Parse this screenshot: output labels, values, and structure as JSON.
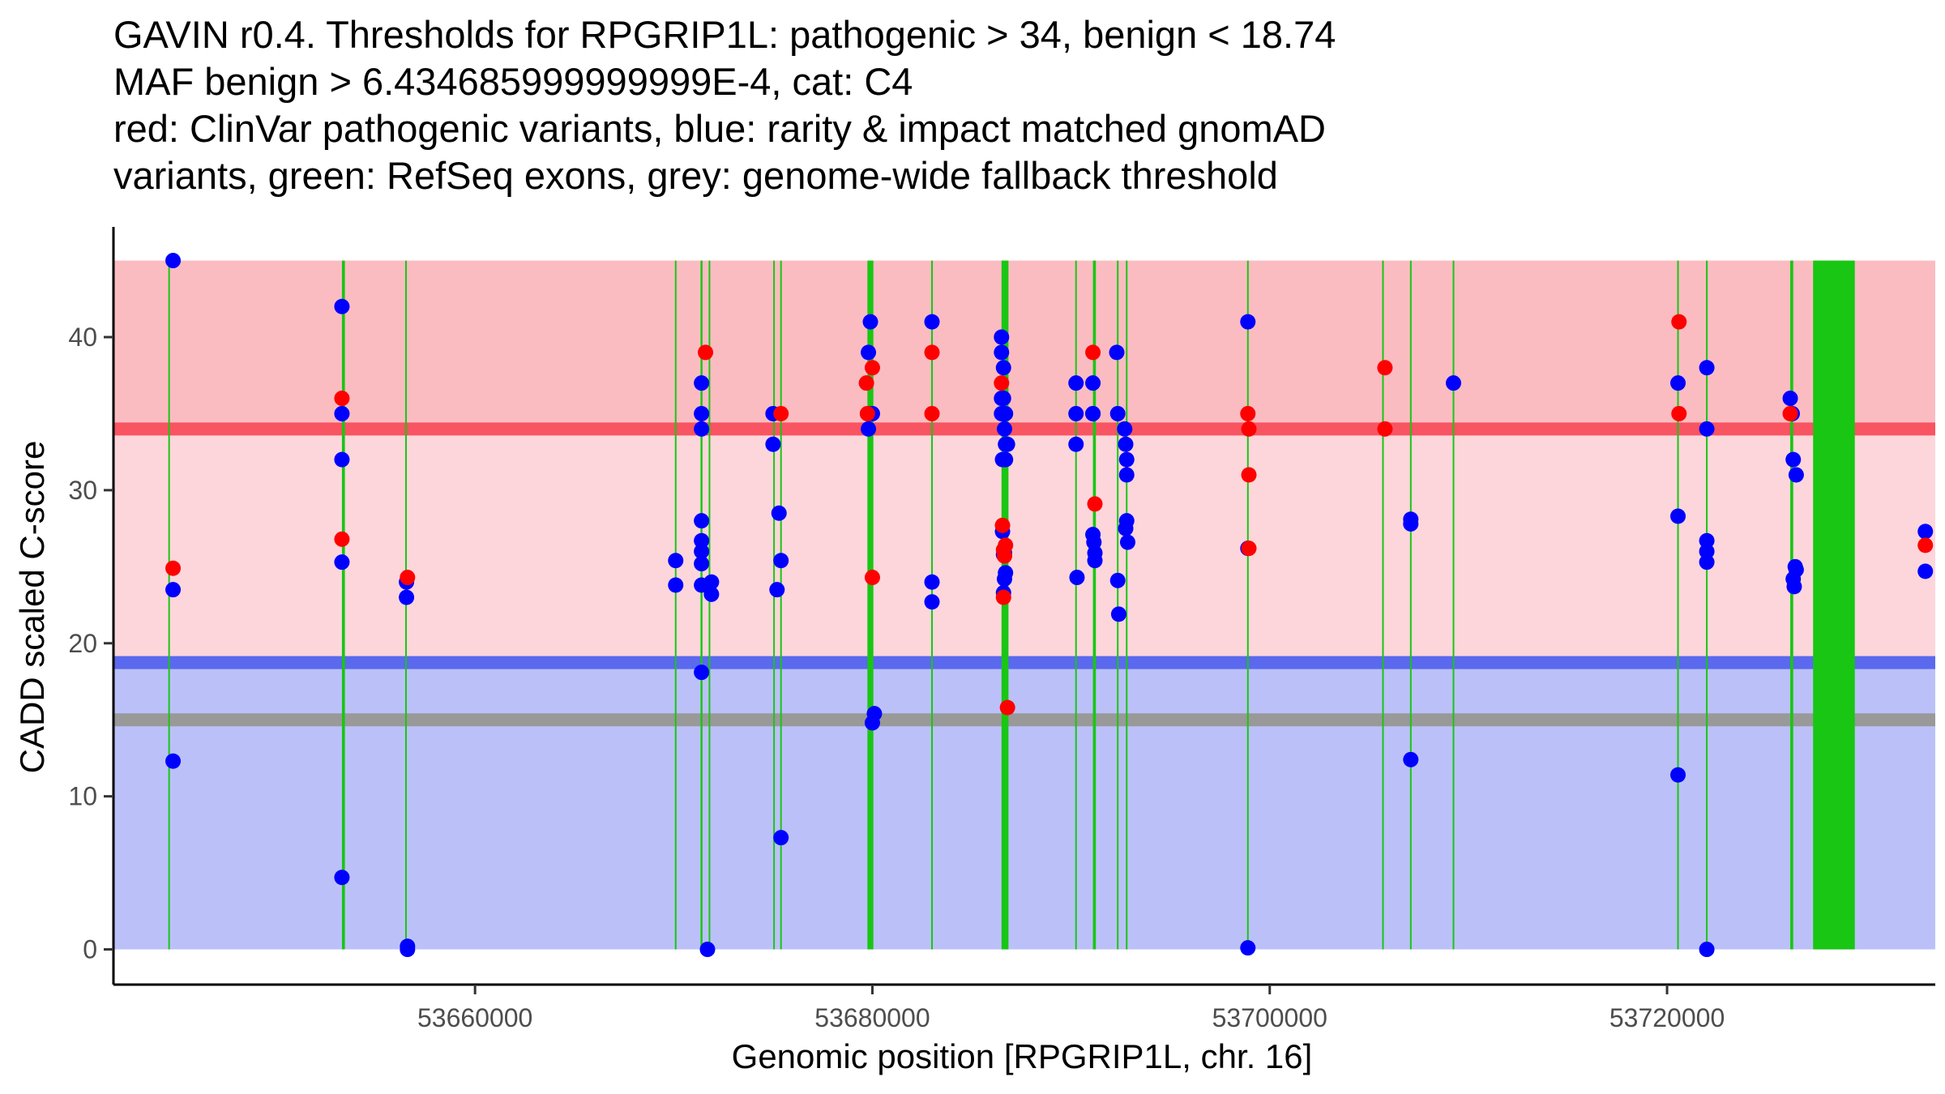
{
  "title_lines": [
    "GAVIN r0.4. Thresholds for RPGRIP1L: pathogenic > 34, benign < 18.74",
    "MAF benign > 6.434685999999999E-4, cat: C4",
    "red: ClinVar pathogenic variants, blue: rarity & impact matched gnomAD",
    "variants, green: RefSeq exons, grey: genome-wide fallback threshold"
  ],
  "colors": {
    "pathogenic_zone": "#fbbcc1",
    "vus_zone": "#fdd6db",
    "benign_zone": "#bbc1f8",
    "pathogenic_line": "#f95461",
    "benign_line": "#5a69ee",
    "fallback_line": "#999999",
    "exon": "#19c614",
    "pathogenic_point": "#ff0000",
    "benign_point": "#0000ff"
  },
  "chart_data": {
    "type": "scatter",
    "title": "GAVIN r0.4. Thresholds for RPGRIP1L: pathogenic > 34, benign < 18.74",
    "xlabel": "Genomic position [RPGRIP1L, chr. 16]",
    "ylabel": "CADD scaled C-score",
    "xlim": [
      53641800,
      53733500
    ],
    "ylim": [
      -2.3,
      47.2
    ],
    "xticks": [
      53660000,
      53680000,
      53700000,
      53720000
    ],
    "xtick_labels": [
      "53660000",
      "53680000",
      "53700000",
      "53720000"
    ],
    "yticks": [
      0,
      10,
      20,
      30,
      40
    ],
    "ytick_labels": [
      "0",
      "10",
      "20",
      "30",
      "40"
    ],
    "grid": false,
    "bands": [
      {
        "name": "benign-zone",
        "y0": 0,
        "y1": 18.74,
        "color_key": "benign_zone"
      },
      {
        "name": "vus-zone",
        "y0": 18.74,
        "y1": 34,
        "color_key": "vus_zone"
      },
      {
        "name": "pathogenic-zone",
        "y0": 34,
        "y1": 45,
        "color_key": "pathogenic_zone"
      }
    ],
    "threshold_lines": [
      {
        "name": "pathogenic-threshold",
        "y": 34,
        "color_key": "pathogenic_line"
      },
      {
        "name": "benign-threshold",
        "y": 18.74,
        "color_key": "benign_line"
      },
      {
        "name": "fallback-threshold",
        "y": 15,
        "color_key": "fallback_line"
      }
    ],
    "exon_y_range": [
      0,
      45
    ],
    "exons": [
      {
        "start": 53644600,
        "end": 53644600
      },
      {
        "start": 53653300,
        "end": 53653450
      },
      {
        "start": 53656500,
        "end": 53656550
      },
      {
        "start": 53670100,
        "end": 53670100
      },
      {
        "start": 53671350,
        "end": 53671450
      },
      {
        "start": 53671800,
        "end": 53671800
      },
      {
        "start": 53675050,
        "end": 53675050
      },
      {
        "start": 53675400,
        "end": 53675400
      },
      {
        "start": 53679750,
        "end": 53680050
      },
      {
        "start": 53683000,
        "end": 53683000
      },
      {
        "start": 53686500,
        "end": 53686850
      },
      {
        "start": 53690250,
        "end": 53690250
      },
      {
        "start": 53691100,
        "end": 53691250
      },
      {
        "start": 53692350,
        "end": 53692350
      },
      {
        "start": 53692800,
        "end": 53692800
      },
      {
        "start": 53698900,
        "end": 53698900
      },
      {
        "start": 53705700,
        "end": 53705700
      },
      {
        "start": 53707100,
        "end": 53707100
      },
      {
        "start": 53709250,
        "end": 53709250
      },
      {
        "start": 53720550,
        "end": 53720550
      },
      {
        "start": 53722000,
        "end": 53722000
      },
      {
        "start": 53726200,
        "end": 53726350
      },
      {
        "start": 53727350,
        "end": 53729450
      }
    ],
    "series": [
      {
        "name": "ClinVar pathogenic",
        "color_key": "pathogenic_point",
        "x": [
          53644800,
          53653300,
          53653300,
          53656600,
          53671600,
          53675400,
          53679700,
          53679750,
          53680000,
          53680000,
          53683000,
          53683000,
          53686500,
          53686550,
          53686600,
          53686600,
          53686650,
          53686700,
          53686800,
          53691100,
          53691200,
          53698900,
          53698950,
          53698950,
          53698950,
          53705800,
          53705800,
          53720600,
          53720600,
          53726200,
          53733000
        ],
        "y": [
          24.9,
          36,
          26.8,
          24.3,
          39,
          35,
          37,
          35,
          38,
          24.3,
          39,
          35,
          37,
          27.7,
          26.1,
          23,
          25.7,
          26.4,
          15.8,
          39,
          29.1,
          35,
          34,
          31,
          26.2,
          38,
          34,
          41,
          35,
          35,
          26.4
        ]
      },
      {
        "name": "gnomAD rarity & impact matched",
        "color_key": "benign_point",
        "x": [
          53644800,
          53644800,
          53644800,
          53653300,
          53653300,
          53653300,
          53653300,
          53653300,
          53656550,
          53656550,
          53656600,
          53656600,
          53670100,
          53670100,
          53671400,
          53671400,
          53671400,
          53671400,
          53671400,
          53671400,
          53671400,
          53671400,
          53671400,
          53671700,
          53671900,
          53671900,
          53675000,
          53675000,
          53675200,
          53675300,
          53675400,
          53675400,
          53679800,
          53679800,
          53679800,
          53679900,
          53680000,
          53680000,
          53680100,
          53683000,
          53683000,
          53683000,
          53686500,
          53686500,
          53686500,
          53686500,
          53686600,
          53686600,
          53686600,
          53686650,
          53686700,
          53686700,
          53686700,
          53686800,
          53686550,
          53686650,
          53686650,
          53686550,
          53686600,
          53686700,
          53686600,
          53690250,
          53690250,
          53690250,
          53690300,
          53691100,
          53691100,
          53691100,
          53691100,
          53691150,
          53691200,
          53691200,
          53692300,
          53692350,
          53692350,
          53692400,
          53692700,
          53692750,
          53692800,
          53692800,
          53692800,
          53692750,
          53692850,
          53698900,
          53698900,
          53698900,
          53707100,
          53707100,
          53707100,
          53709250,
          53720550,
          53720550,
          53720550,
          53722000,
          53722000,
          53722000,
          53722000,
          53722000,
          53722000,
          53726200,
          53726300,
          53726350,
          53726500,
          53726500,
          53726450,
          53726350,
          53726400,
          53733000,
          53733000
        ],
        "y": [
          45,
          23.5,
          12.3,
          42,
          35,
          32,
          25.3,
          4.7,
          24,
          23,
          0.2,
          0,
          25.4,
          23.8,
          35,
          37,
          34,
          28,
          26.7,
          26,
          25.2,
          23.8,
          18.1,
          0,
          24,
          23.2,
          35,
          33,
          23.5,
          28.5,
          25.4,
          7.3,
          39,
          35,
          34,
          41,
          35,
          14.8,
          15.4,
          41,
          24,
          22.7,
          40,
          39,
          36,
          35,
          38,
          36,
          35,
          34,
          35,
          33,
          32,
          33,
          32,
          25.9,
          24.2,
          27.3,
          25.8,
          24.6,
          23.3,
          37,
          35,
          33,
          24.3,
          37,
          35,
          35,
          27.1,
          26.6,
          25.9,
          25.4,
          39,
          35,
          24.1,
          21.9,
          34,
          33,
          32,
          31,
          28,
          27.5,
          26.6,
          41,
          26.2,
          0.1,
          28.1,
          27.8,
          12.4,
          37,
          37,
          28.3,
          11.4,
          38,
          34,
          26.7,
          26,
          25.3,
          0,
          36,
          35,
          32,
          31,
          24.8,
          25,
          24.2,
          23.7,
          27.3,
          24.7
        ]
      }
    ]
  }
}
